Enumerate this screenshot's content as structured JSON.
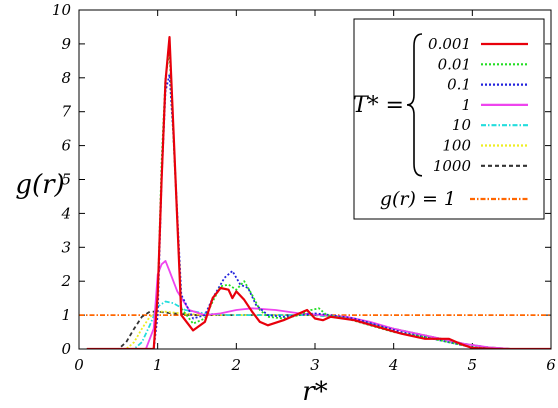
{
  "chart_data": {
    "type": "line",
    "title": "",
    "xlabel": "r*",
    "ylabel": "g(r)",
    "xlim": [
      0,
      6
    ],
    "ylim": [
      0,
      10
    ],
    "xticks": [
      "0",
      "1",
      "2",
      "3",
      "4",
      "5",
      "6"
    ],
    "yticks": [
      "0",
      "1",
      "2",
      "3",
      "4",
      "5",
      "6",
      "7",
      "8",
      "9",
      "10"
    ],
    "grid": false,
    "legend_position": "top-right",
    "legend_group_label": "T* =",
    "series": [
      {
        "name": "0.001",
        "color": "#e8000b",
        "dash": "solid",
        "x": [
          0.1,
          0.95,
          1.0,
          1.05,
          1.1,
          1.15,
          1.2,
          1.3,
          1.45,
          1.6,
          1.7,
          1.8,
          1.9,
          1.95,
          2.0,
          2.1,
          2.2,
          2.3,
          2.4,
          2.6,
          2.8,
          2.9,
          3.0,
          3.1,
          3.2,
          3.5,
          3.8,
          4.1,
          4.4,
          4.7,
          4.85,
          5.0,
          5.3,
          5.6,
          5.8,
          6.0
        ],
        "y": [
          0,
          0,
          1.6,
          5.0,
          7.9,
          9.2,
          6.5,
          1.0,
          0.55,
          0.8,
          1.5,
          1.8,
          1.75,
          1.5,
          1.7,
          1.45,
          1.1,
          0.8,
          0.7,
          0.85,
          1.05,
          1.15,
          0.9,
          0.85,
          0.95,
          0.85,
          0.65,
          0.45,
          0.3,
          0.3,
          0.15,
          0.03,
          0,
          0,
          0,
          0
        ]
      },
      {
        "name": "0.01",
        "color": "#22dd22",
        "dash": "dotted",
        "x": [
          0.1,
          0.95,
          1.0,
          1.05,
          1.1,
          1.15,
          1.2,
          1.3,
          1.45,
          1.6,
          1.7,
          1.8,
          1.9,
          2.0,
          2.1,
          2.2,
          2.3,
          2.4,
          2.6,
          2.8,
          2.95,
          3.05,
          3.15,
          3.4,
          3.7,
          4.0,
          4.4,
          4.7,
          5.0,
          5.3,
          6.0
        ],
        "y": [
          0,
          0,
          1.5,
          5.5,
          8.0,
          8.8,
          6.3,
          1.2,
          0.75,
          0.9,
          1.4,
          1.85,
          1.9,
          1.75,
          2.0,
          1.6,
          1.15,
          0.95,
          0.9,
          1.0,
          1.15,
          1.2,
          1.0,
          0.9,
          0.7,
          0.5,
          0.35,
          0.2,
          0.05,
          0,
          0
        ]
      },
      {
        "name": "0.1",
        "color": "#2222dd",
        "dash": "dotted",
        "x": [
          0.1,
          0.95,
          1.0,
          1.05,
          1.1,
          1.15,
          1.2,
          1.3,
          1.45,
          1.6,
          1.7,
          1.8,
          1.85,
          1.95,
          2.05,
          2.15,
          2.25,
          2.4,
          2.6,
          2.8,
          3.0,
          3.2,
          3.5,
          3.8,
          4.1,
          4.4,
          4.7,
          5.0,
          5.3,
          6.0
        ],
        "y": [
          0,
          0,
          1.0,
          5.0,
          7.6,
          8.1,
          6.3,
          1.6,
          0.9,
          1.0,
          1.5,
          1.9,
          2.1,
          2.3,
          1.9,
          1.8,
          1.3,
          1.0,
          0.95,
          1.0,
          1.05,
          1.0,
          0.9,
          0.7,
          0.5,
          0.35,
          0.2,
          0.05,
          0,
          0
        ]
      },
      {
        "name": "1",
        "color": "#ee44ee",
        "dash": "solid",
        "x": [
          0.1,
          0.85,
          0.95,
          1.0,
          1.05,
          1.1,
          1.15,
          1.25,
          1.4,
          1.6,
          1.8,
          2.0,
          2.2,
          2.5,
          2.8,
          3.1,
          3.4,
          3.7,
          4.0,
          4.3,
          4.6,
          4.9,
          5.2,
          5.5,
          6.0
        ],
        "y": [
          0,
          0,
          0.6,
          2.2,
          2.5,
          2.6,
          2.3,
          1.7,
          1.15,
          1.0,
          1.05,
          1.15,
          1.2,
          1.15,
          1.05,
          1.0,
          0.95,
          0.8,
          0.6,
          0.45,
          0.3,
          0.15,
          0.05,
          0,
          0
        ]
      },
      {
        "name": "10",
        "color": "#22dddd",
        "dash": "dashdot",
        "x": [
          0.1,
          0.7,
          0.8,
          0.9,
          1.0,
          1.1,
          1.2,
          1.35,
          1.6,
          1.9,
          2.2,
          2.6,
          3.0,
          3.4,
          3.8,
          4.2,
          4.6,
          4.9,
          5.2,
          5.5,
          6.0
        ],
        "y": [
          0,
          0,
          0.2,
          0.7,
          1.25,
          1.4,
          1.35,
          1.15,
          1.05,
          1.0,
          1.0,
          1.0,
          1.0,
          0.9,
          0.7,
          0.5,
          0.3,
          0.15,
          0.05,
          0,
          0
        ]
      },
      {
        "name": "100",
        "color": "#eeee22",
        "dash": "dotted",
        "x": [
          0.1,
          0.6,
          0.7,
          0.8,
          0.9,
          1.0,
          1.1,
          1.3,
          1.6,
          2.0,
          2.5,
          3.0,
          3.4,
          3.8,
          4.2,
          4.6,
          4.9,
          5.2,
          5.5,
          6.0
        ],
        "y": [
          0,
          0,
          0.2,
          0.6,
          0.95,
          1.1,
          1.1,
          1.05,
          1.0,
          1.0,
          1.0,
          1.0,
          0.9,
          0.7,
          0.5,
          0.3,
          0.15,
          0.05,
          0,
          0
        ]
      },
      {
        "name": "1000",
        "color": "#333333",
        "dash": "dashed",
        "x": [
          0.1,
          0.5,
          0.6,
          0.7,
          0.8,
          0.9,
          1.0,
          1.2,
          1.5,
          2.0,
          2.5,
          3.0,
          3.4,
          3.8,
          4.2,
          4.6,
          4.9,
          5.2,
          5.5,
          6.0
        ],
        "y": [
          0,
          0,
          0.2,
          0.6,
          0.95,
          1.1,
          1.1,
          1.05,
          1.0,
          1.0,
          1.0,
          1.0,
          0.9,
          0.7,
          0.5,
          0.3,
          0.15,
          0.05,
          0,
          0
        ]
      },
      {
        "name": "g(r) = 1",
        "color": "#ff6600",
        "dash": "dashdot",
        "x": [
          0,
          6
        ],
        "y": [
          1,
          1
        ]
      }
    ]
  }
}
